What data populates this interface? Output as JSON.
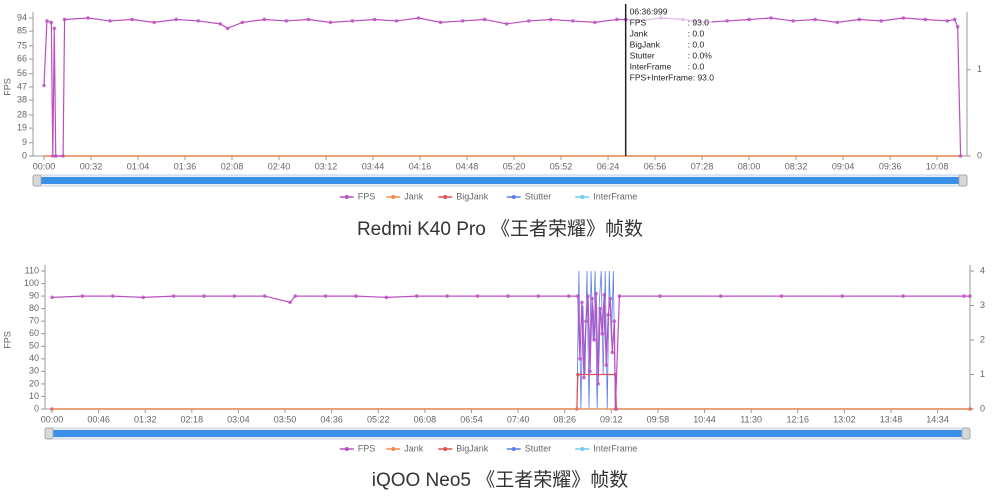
{
  "chart_data": [
    {
      "type": "line",
      "caption": "Redmi K40 Pro 《王者荣耀》帧数",
      "ylabel": "FPS",
      "xlim": [
        0,
        627
      ],
      "xticks": [
        {
          "value": 0,
          "label": "00:00"
        },
        {
          "value": 32,
          "label": "00:32"
        },
        {
          "value": 64,
          "label": "01:04"
        },
        {
          "value": 96,
          "label": "01:36"
        },
        {
          "value": 128,
          "label": "02:08"
        },
        {
          "value": 160,
          "label": "02:40"
        },
        {
          "value": 192,
          "label": "03:12"
        },
        {
          "value": 224,
          "label": "03:44"
        },
        {
          "value": 256,
          "label": "04:16"
        },
        {
          "value": 288,
          "label": "04:48"
        },
        {
          "value": 320,
          "label": "05:20"
        },
        {
          "value": 352,
          "label": "05:52"
        },
        {
          "value": 384,
          "label": "06:24"
        },
        {
          "value": 416,
          "label": "06:56"
        },
        {
          "value": 448,
          "label": "07:28"
        },
        {
          "value": 480,
          "label": "08:00"
        },
        {
          "value": 512,
          "label": "08:32"
        },
        {
          "value": 544,
          "label": "09:04"
        },
        {
          "value": 576,
          "label": "09:36"
        },
        {
          "value": 608,
          "label": "10:08"
        }
      ],
      "ylim": [
        0,
        94
      ],
      "yticks": [
        0,
        9,
        19,
        28,
        38,
        47,
        56,
        66,
        75,
        85,
        94
      ],
      "y2lim": [
        0,
        1.6
      ],
      "y2ticks": [
        0,
        1
      ],
      "series": [
        {
          "name": "FPS",
          "color": "#bb4fc2",
          "symbol": true,
          "x": [
            0,
            2,
            5,
            6,
            7,
            8,
            13,
            14,
            30,
            45,
            60,
            75,
            90,
            105,
            120,
            125,
            135,
            150,
            165,
            180,
            195,
            210,
            225,
            240,
            255,
            270,
            285,
            300,
            315,
            330,
            345,
            360,
            375,
            390,
            396,
            405,
            420,
            435,
            450,
            465,
            480,
            495,
            510,
            525,
            540,
            555,
            570,
            585,
            600,
            615,
            620,
            622,
            624
          ],
          "values": [
            48,
            92,
            91,
            0,
            87,
            0,
            0,
            93,
            94,
            92,
            93,
            91,
            93,
            92,
            90,
            87,
            91,
            93,
            92,
            93,
            91,
            92,
            93,
            92,
            94,
            91,
            92,
            93,
            90,
            92,
            93,
            92,
            91,
            93,
            93,
            92,
            94,
            93,
            91,
            92,
            93,
            94,
            92,
            93,
            91,
            93,
            92,
            94,
            93,
            92,
            93,
            88,
            0
          ]
        },
        {
          "name": "Jank",
          "color": "#f08c4a",
          "x": [
            0,
            624
          ],
          "values": [
            0,
            0
          ]
        },
        {
          "name": "BigJank",
          "color": "#e0504f",
          "x": [
            0,
            624
          ],
          "values": [
            0,
            0
          ]
        },
        {
          "name": "Stutter",
          "color": "#5b7fe8",
          "axis": "y2",
          "x": [
            0,
            624
          ],
          "values": [
            0,
            0
          ]
        },
        {
          "name": "InterFrame",
          "color": "#6fcbee",
          "x": [
            0,
            624
          ],
          "values": [
            0,
            0
          ]
        }
      ],
      "cursor": {
        "x": 396,
        "title": "06:36:999",
        "rows": [
          {
            "label": "FPS",
            "value": ": 93.0"
          },
          {
            "label": "Jank",
            "value": ": 0.0"
          },
          {
            "label": "BigJank",
            "value": ": 0.0"
          },
          {
            "label": "Stutter",
            "value": ": 0.0%"
          },
          {
            "label": "InterFrame",
            "value": ": 0.0"
          },
          {
            "label": "FPS+InterFrame",
            "value": ": 93.0"
          }
        ]
      }
    },
    {
      "type": "line",
      "caption": "iQOO Neo5 《王者荣耀》帧数",
      "ylabel": "FPS",
      "xlim": [
        0,
        906
      ],
      "xticks": [
        {
          "value": 0,
          "label": "00:00"
        },
        {
          "value": 46,
          "label": "00:46"
        },
        {
          "value": 92,
          "label": "01:32"
        },
        {
          "value": 138,
          "label": "02:18"
        },
        {
          "value": 184,
          "label": "03:04"
        },
        {
          "value": 230,
          "label": "03:50"
        },
        {
          "value": 276,
          "label": "04:36"
        },
        {
          "value": 322,
          "label": "05:22"
        },
        {
          "value": 368,
          "label": "06:08"
        },
        {
          "value": 414,
          "label": "06:54"
        },
        {
          "value": 460,
          "label": "07:40"
        },
        {
          "value": 506,
          "label": "08:26"
        },
        {
          "value": 552,
          "label": "09:12"
        },
        {
          "value": 598,
          "label": "09:58"
        },
        {
          "value": 644,
          "label": "10:44"
        },
        {
          "value": 690,
          "label": "11:30"
        },
        {
          "value": 736,
          "label": "12:16"
        },
        {
          "value": 782,
          "label": "13:02"
        },
        {
          "value": 828,
          "label": "13:48"
        },
        {
          "value": 874,
          "label": "14:34"
        }
      ],
      "ylim": [
        0,
        110
      ],
      "yticks": [
        0,
        10,
        20,
        30,
        40,
        50,
        60,
        70,
        80,
        90,
        100,
        110
      ],
      "y2lim": [
        0,
        4
      ],
      "y2ticks": [
        0,
        1,
        2,
        3,
        4
      ],
      "series": [
        {
          "name": "FPS",
          "color": "#bb4fc2",
          "symbol": true,
          "x": [
            0,
            30,
            60,
            90,
            120,
            150,
            180,
            210,
            235,
            240,
            270,
            300,
            330,
            360,
            390,
            420,
            450,
            480,
            510,
            519,
            521,
            523,
            525,
            527,
            529,
            531,
            533,
            535,
            537,
            539,
            541,
            543,
            545,
            547,
            549,
            551,
            553,
            555,
            556,
            560,
            600,
            660,
            720,
            780,
            840,
            900,
            906
          ],
          "values": [
            89,
            90,
            90,
            89,
            90,
            90,
            90,
            90,
            85,
            90,
            90,
            90,
            89,
            90,
            90,
            90,
            90,
            90,
            90,
            90,
            40,
            85,
            25,
            70,
            90,
            30,
            88,
            55,
            92,
            20,
            80,
            60,
            91,
            35,
            75,
            88,
            45,
            70,
            0,
            90,
            90,
            90,
            90,
            90,
            90,
            90,
            90
          ]
        },
        {
          "name": "Jank",
          "color": "#f08c4a",
          "axis": "y2",
          "x": [
            0,
            906
          ],
          "values": [
            0,
            0
          ]
        },
        {
          "name": "BigJank",
          "color": "#e0504f",
          "axis": "y2",
          "symbol": true,
          "x": [
            0,
            518,
            519,
            556,
            557,
            906
          ],
          "values": [
            0,
            0,
            1,
            1,
            0,
            0
          ]
        },
        {
          "name": "Stutter",
          "color": "#5b7fe8",
          "axis": "y2",
          "x": [
            0,
            518,
            520,
            522,
            524,
            526,
            528,
            530,
            532,
            534,
            536,
            538,
            540,
            542,
            544,
            546,
            548,
            550,
            552,
            554,
            556,
            558,
            906
          ],
          "values": [
            0,
            0,
            4,
            0,
            3,
            1,
            4,
            0,
            4,
            2,
            4,
            0,
            3,
            4,
            1,
            4,
            0,
            4,
            2,
            4,
            0,
            0,
            0
          ]
        },
        {
          "name": "InterFrame",
          "color": "#6fcbee",
          "x": [
            0,
            906
          ],
          "values": [
            0,
            0
          ]
        }
      ]
    }
  ]
}
